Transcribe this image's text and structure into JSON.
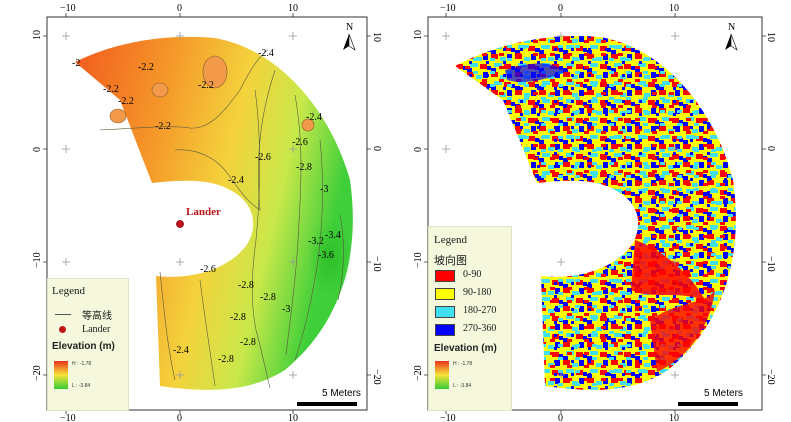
{
  "left_map": {
    "axis_ticks": {
      "x": [
        "−10",
        "0",
        "10"
      ],
      "y": [
        "10",
        "0",
        "−10",
        "−20"
      ]
    },
    "contour_labels": [
      "-2",
      "-2.2",
      "-2.2",
      "-2.2",
      "-2.2",
      "-2.2",
      "-2.4",
      "-2.4",
      "-2.6",
      "-2.4",
      "-2.6",
      "-2.8",
      "-3",
      "-3.2",
      "-3.4",
      "-3.6",
      "-2.6",
      "-2.8",
      "-2.8",
      "-3",
      "-2.8",
      "-2.8",
      "-2.8",
      "-2.4"
    ],
    "lander_label": "Lander",
    "legend": {
      "title": "Legend",
      "contour_label": "等高线",
      "lander_label": "Lander",
      "elevation_title": "Elevation (m)",
      "high_label": "H : -1.78",
      "low_label": "L : -3.84"
    },
    "scale_label": "5 Meters",
    "north": "N"
  },
  "right_map": {
    "axis_ticks": {
      "x": [
        "−10",
        "0",
        "10"
      ],
      "y": [
        "10",
        "0",
        "−10",
        "−20"
      ]
    },
    "legend": {
      "title": "Legend",
      "aspect_title": "坡向图",
      "classes": [
        {
          "label": "0-90",
          "color": "#ff0000"
        },
        {
          "label": "90-180",
          "color": "#ffff00"
        },
        {
          "label": "180-270",
          "color": "#40e0f0"
        },
        {
          "label": "270-360",
          "color": "#0000ff"
        }
      ],
      "elevation_title": "Elevation (m)",
      "high_label": "H : -1.78",
      "low_label": "L : -3.84"
    },
    "scale_label": "5 Meters",
    "north": "N"
  }
}
